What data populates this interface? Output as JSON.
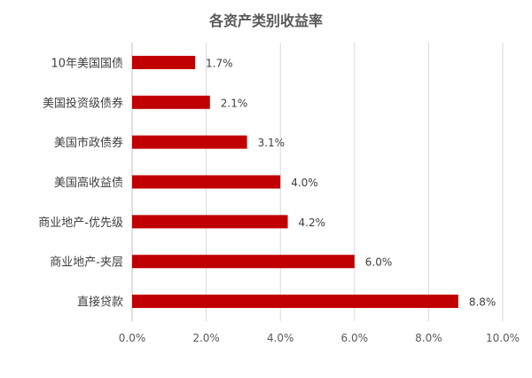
{
  "chart_data": {
    "type": "bar",
    "orientation": "horizontal",
    "title": "各资产类别收益率",
    "categories": [
      "10年美国国债",
      "美国投资级债券",
      "美国市政债券",
      "美国高收益债",
      "商业地产-优先级",
      "商业地产-夹层",
      "直接贷款"
    ],
    "values": [
      0.017,
      0.021,
      0.031,
      0.04,
      0.042,
      0.06,
      0.088
    ],
    "value_labels": [
      "1.7%",
      "2.1%",
      "3.1%",
      "4.0%",
      "4.2%",
      "6.0%",
      "8.8%"
    ],
    "xlim": [
      0,
      0.1
    ],
    "ticks": [
      0,
      0.02,
      0.04,
      0.06,
      0.08,
      0.1
    ],
    "tick_labels": [
      "0.0%",
      "2.0%",
      "4.0%",
      "6.0%",
      "8.0%",
      "10.0%"
    ],
    "grid": true,
    "legend": "none",
    "bar_color": "#c00000"
  }
}
